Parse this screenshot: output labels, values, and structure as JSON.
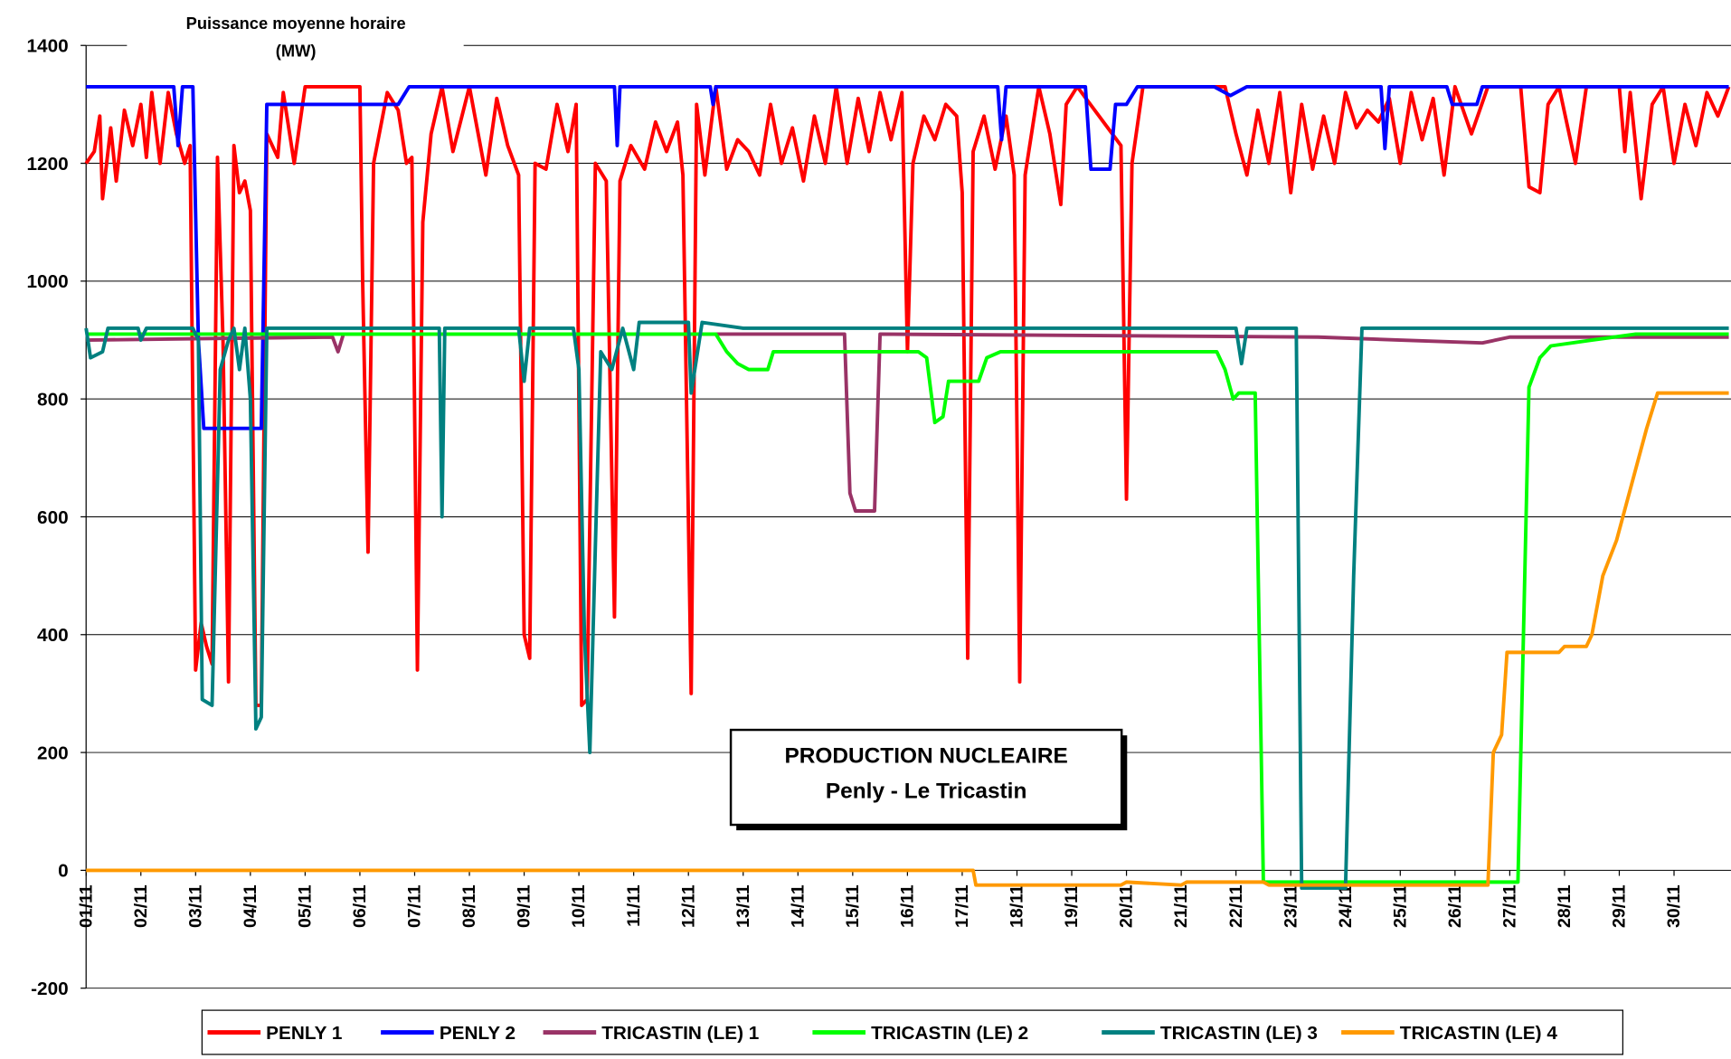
{
  "chart_data": {
    "type": "line",
    "y_label": [
      "Puissance moyenne horaire",
      "(MW)"
    ],
    "annotation": [
      "PRODUCTION NUCLEAIRE",
      "Penly - Le Tricastin"
    ],
    "xlim": [
      0,
      30
    ],
    "xticks": [
      {
        "value": 0,
        "label": "01/11"
      },
      {
        "value": 1,
        "label": "02/11"
      },
      {
        "value": 2,
        "label": "03/11"
      },
      {
        "value": 3,
        "label": "04/11"
      },
      {
        "value": 4,
        "label": "05/11"
      },
      {
        "value": 5,
        "label": "06/11"
      },
      {
        "value": 6,
        "label": "07/11"
      },
      {
        "value": 7,
        "label": "08/11"
      },
      {
        "value": 8,
        "label": "09/11"
      },
      {
        "value": 9,
        "label": "10/11"
      },
      {
        "value": 10,
        "label": "11/11"
      },
      {
        "value": 11,
        "label": "12/11"
      },
      {
        "value": 12,
        "label": "13/11"
      },
      {
        "value": 13,
        "label": "14/11"
      },
      {
        "value": 14,
        "label": "15/11"
      },
      {
        "value": 15,
        "label": "16/11"
      },
      {
        "value": 16,
        "label": "17/11"
      },
      {
        "value": 17,
        "label": "18/11"
      },
      {
        "value": 18,
        "label": "19/11"
      },
      {
        "value": 19,
        "label": "20/11"
      },
      {
        "value": 20,
        "label": "21/11"
      },
      {
        "value": 21,
        "label": "22/11"
      },
      {
        "value": 22,
        "label": "23/11"
      },
      {
        "value": 23,
        "label": "24/11"
      },
      {
        "value": 24,
        "label": "25/11"
      },
      {
        "value": 25,
        "label": "26/11"
      },
      {
        "value": 26,
        "label": "27/11"
      },
      {
        "value": 27,
        "label": "28/11"
      },
      {
        "value": 28,
        "label": "29/11"
      },
      {
        "value": 29,
        "label": "30/11"
      }
    ],
    "ylim": [
      -200,
      1400
    ],
    "yticks": [
      -200,
      0,
      200,
      400,
      600,
      800,
      1000,
      1200,
      1400
    ],
    "grid": true,
    "series": [
      {
        "name": "PENLY 1",
        "color": "#ff0000",
        "x": [
          0,
          0.15,
          0.25,
          0.3,
          0.45,
          0.55,
          0.7,
          0.85,
          1.0,
          1.1,
          1.2,
          1.35,
          1.5,
          1.65,
          1.8,
          1.9,
          2.0,
          2.1,
          2.2,
          2.3,
          2.4,
          2.5,
          2.6,
          2.7,
          2.8,
          2.9,
          3.0,
          3.1,
          3.2,
          3.3,
          3.5,
          3.6,
          3.8,
          4.0,
          5.0,
          5.05,
          5.15,
          5.25,
          5.5,
          5.7,
          5.85,
          5.95,
          6.05,
          6.15,
          6.3,
          6.5,
          6.7,
          7.0,
          7.3,
          7.5,
          7.7,
          7.9,
          8.0,
          8.1,
          8.2,
          8.4,
          8.6,
          8.8,
          8.95,
          9.05,
          9.15,
          9.3,
          9.5,
          9.65,
          9.75,
          9.95,
          10.2,
          10.4,
          10.6,
          10.8,
          10.9,
          11.05,
          11.15,
          11.3,
          11.5,
          11.7,
          11.9,
          12.1,
          12.3,
          12.5,
          12.7,
          12.9,
          13.1,
          13.3,
          13.5,
          13.7,
          13.9,
          14.1,
          14.3,
          14.5,
          14.7,
          14.9,
          15.0,
          15.1,
          15.3,
          15.5,
          15.7,
          15.9,
          16.0,
          16.1,
          16.2,
          16.4,
          16.6,
          16.8,
          16.95,
          17.05,
          17.15,
          17.4,
          17.6,
          17.8,
          17.9,
          18.1,
          18.9,
          19.0,
          19.1,
          19.3,
          20.8,
          21.0,
          21.2,
          21.4,
          21.6,
          21.8,
          22.0,
          22.2,
          22.4,
          22.6,
          22.8,
          23.0,
          23.2,
          23.4,
          23.6,
          23.8,
          24.0,
          24.2,
          24.4,
          24.6,
          24.8,
          25.0,
          25.3,
          25.6,
          26.2,
          26.35,
          26.55,
          26.7,
          26.9,
          27.2,
          27.4,
          28.0,
          28.1,
          28.2,
          28.4,
          28.6,
          28.8,
          29.0,
          29.2,
          29.4,
          29.6,
          29.8,
          30
        ],
        "values": [
          1200,
          1220,
          1280,
          1140,
          1260,
          1170,
          1290,
          1230,
          1300,
          1210,
          1320,
          1200,
          1320,
          1250,
          1200,
          1230,
          340,
          420,
          380,
          350,
          1210,
          900,
          320,
          1230,
          1150,
          1170,
          1120,
          280,
          280,
          1250,
          1210,
          1320,
          1200,
          1330,
          1330,
          1000,
          540,
          1200,
          1320,
          1290,
          1200,
          1210,
          340,
          1100,
          1250,
          1330,
          1220,
          1330,
          1180,
          1310,
          1230,
          1180,
          400,
          360,
          1200,
          1190,
          1300,
          1220,
          1300,
          280,
          290,
          1200,
          1170,
          430,
          1170,
          1230,
          1190,
          1270,
          1220,
          1270,
          1180,
          300,
          1300,
          1180,
          1330,
          1190,
          1240,
          1220,
          1180,
          1300,
          1200,
          1260,
          1170,
          1280,
          1200,
          1330,
          1200,
          1310,
          1220,
          1320,
          1240,
          1320,
          880,
          1200,
          1280,
          1240,
          1300,
          1280,
          1150,
          360,
          1220,
          1280,
          1190,
          1280,
          1180,
          320,
          1180,
          1330,
          1250,
          1130,
          1300,
          1330,
          1230,
          630,
          1200,
          1330,
          1330,
          1250,
          1180,
          1290,
          1200,
          1320,
          1150,
          1300,
          1190,
          1280,
          1200,
          1320,
          1260,
          1290,
          1270,
          1310,
          1200,
          1320,
          1240,
          1310,
          1180,
          1330,
          1250,
          1330,
          1330,
          1160,
          1150,
          1300,
          1330,
          1200,
          1330,
          1330,
          1220,
          1320,
          1140,
          1300,
          1330,
          1200,
          1300,
          1230,
          1320,
          1280,
          1330
        ]
      },
      {
        "name": "PENLY 2",
        "color": "#0000ff",
        "x": [
          0,
          1.6,
          1.68,
          1.76,
          1.95,
          2.05,
          2.15,
          3.2,
          3.3,
          5.7,
          5.9,
          9.65,
          9.7,
          9.75,
          11.4,
          11.45,
          11.5,
          16.65,
          16.72,
          16.8,
          18.25,
          18.35,
          18.7,
          18.8,
          19.0,
          19.2,
          20.6,
          20.9,
          21.2,
          23.65,
          23.72,
          23.8,
          24.85,
          24.95,
          25.4,
          25.5,
          30
        ],
        "values": [
          1330,
          1330,
          1230,
          1330,
          1330,
          900,
          750,
          750,
          1300,
          1300,
          1330,
          1330,
          1230,
          1330,
          1330,
          1300,
          1330,
          1330,
          1240,
          1330,
          1330,
          1190,
          1190,
          1300,
          1300,
          1330,
          1330,
          1315,
          1330,
          1330,
          1225,
          1330,
          1330,
          1300,
          1300,
          1330,
          1330
        ]
      },
      {
        "name": "TRICASTIN (LE) 1",
        "color": "#993366",
        "x": [
          0,
          4.5,
          4.6,
          4.7,
          13.85,
          13.95,
          14.05,
          14.4,
          14.5,
          22.5,
          24,
          25.5,
          26,
          30
        ],
        "values": [
          900,
          905,
          880,
          910,
          910,
          640,
          610,
          610,
          910,
          905,
          900,
          895,
          905,
          905
        ]
      },
      {
        "name": "TRICASTIN (LE) 2",
        "color": "#00ff00",
        "x": [
          0,
          11.5,
          11.7,
          11.9,
          12.1,
          12.45,
          12.55,
          15.2,
          15.35,
          15.5,
          15.65,
          15.75,
          16.3,
          16.45,
          16.7,
          20.5,
          20.65,
          20.8,
          20.95,
          21.05,
          21.35,
          21.5,
          26.15,
          26.35,
          26.55,
          26.75,
          27.5,
          28.3,
          30
        ],
        "values": [
          910,
          910,
          880,
          860,
          850,
          850,
          880,
          880,
          870,
          760,
          770,
          830,
          830,
          870,
          880,
          880,
          880,
          850,
          800,
          810,
          810,
          -20,
          -20,
          820,
          870,
          890,
          900,
          910,
          910
        ]
      },
      {
        "name": "TRICASTIN (LE) 3",
        "color": "#008080",
        "x": [
          0,
          0.08,
          0.3,
          0.4,
          0.95,
          1.0,
          1.1,
          1.95,
          2.05,
          2.12,
          2.3,
          2.45,
          2.6,
          2.7,
          2.8,
          2.9,
          3.0,
          3.1,
          3.2,
          3.3,
          6.45,
          6.5,
          6.55,
          7.9,
          8.0,
          8.1,
          8.9,
          9.0,
          9.1,
          9.2,
          9.3,
          9.4,
          9.6,
          9.8,
          10.0,
          10.1,
          11.0,
          11.05,
          11.25,
          12.0,
          21.0,
          21.1,
          21.2,
          22.1,
          22.2,
          23.0,
          23.15,
          23.3,
          30
        ],
        "values": [
          920,
          870,
          880,
          920,
          920,
          900,
          920,
          920,
          900,
          290,
          280,
          850,
          900,
          920,
          850,
          920,
          800,
          240,
          260,
          920,
          920,
          600,
          920,
          920,
          830,
          920,
          920,
          850,
          400,
          200,
          550,
          880,
          850,
          920,
          850,
          930,
          930,
          810,
          930,
          920,
          920,
          860,
          920,
          920,
          -30,
          -30,
          500,
          920,
          920
        ]
      },
      {
        "name": "TRICASTIN (LE) 4",
        "color": "#ff9900",
        "x": [
          0,
          16.2,
          16.25,
          18.9,
          19.0,
          20.0,
          20.1,
          21.5,
          21.6,
          25.6,
          25.7,
          25.85,
          25.95,
          26.9,
          27.0,
          27.4,
          27.5,
          27.7,
          27.95,
          28.5,
          28.7,
          30
        ],
        "values": [
          0,
          0,
          -25,
          -25,
          -20,
          -25,
          -20,
          -20,
          -25,
          -25,
          200,
          230,
          370,
          370,
          380,
          380,
          400,
          500,
          560,
          750,
          810,
          810
        ]
      }
    ]
  }
}
